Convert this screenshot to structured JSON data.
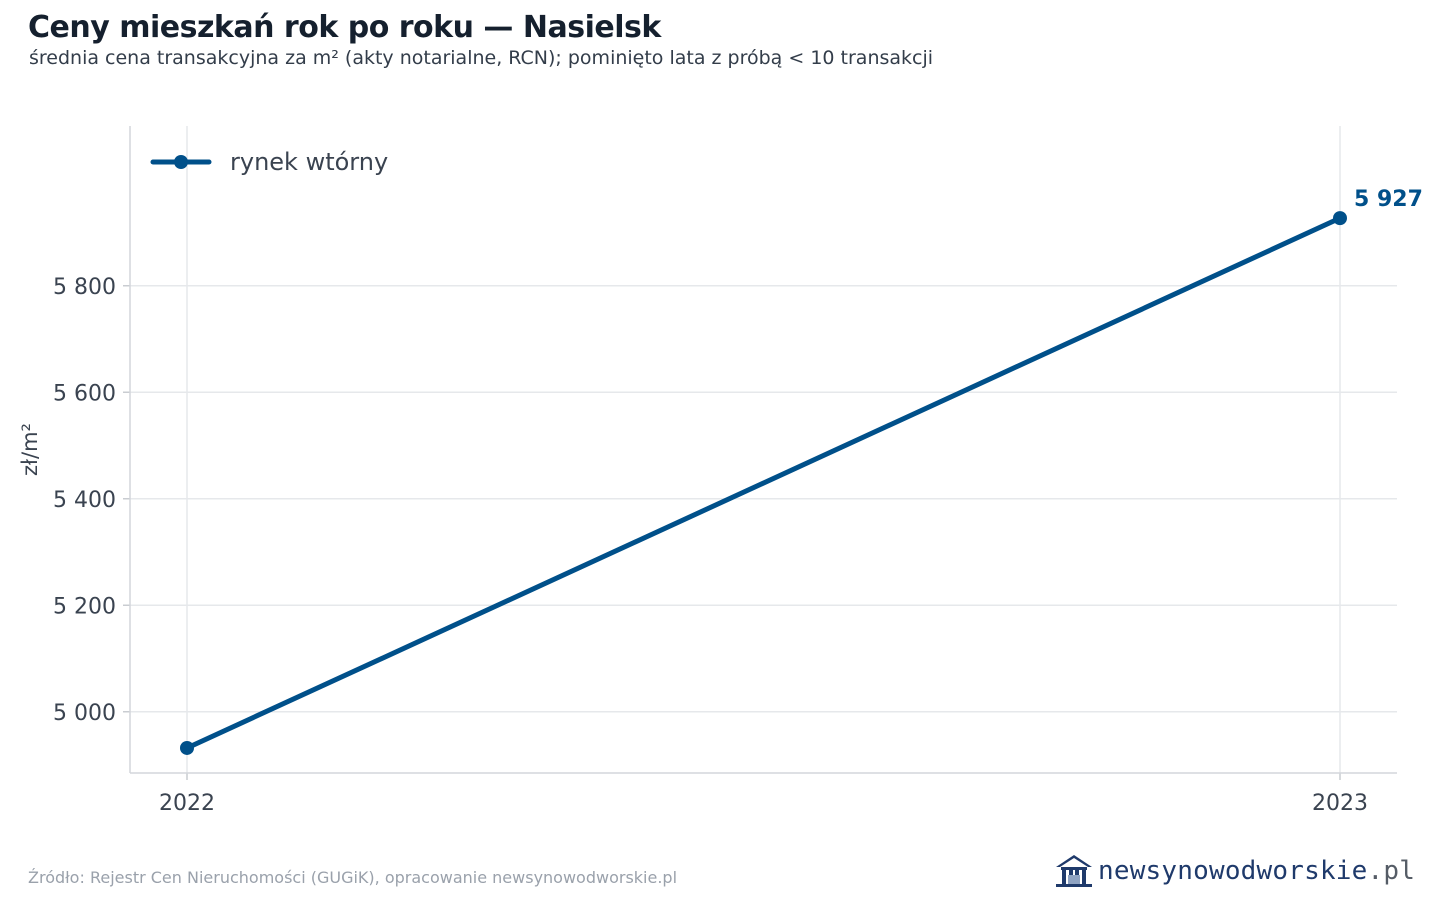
{
  "header": {
    "title": "Ceny mieszkań rok po roku — Nasielsk",
    "subtitle": "średnia cena transakcyjna za m² (akty notarialne, RCN); pominięto lata z próbą < 10 transakcji"
  },
  "chart_data": {
    "type": "line",
    "x": [
      "2022",
      "2023"
    ],
    "series": [
      {
        "name": "rynek wtórny",
        "values": [
          4932,
          5927
        ],
        "color": "#00508a",
        "end_label": "5 927"
      }
    ],
    "ylabel": "zł/m²",
    "xlabel": "",
    "ylim": [
      4885,
      6100
    ],
    "yticks": [
      5000,
      5200,
      5400,
      5600,
      5800
    ],
    "ytick_labels": [
      "5 000",
      "5 200",
      "5 400",
      "5 600",
      "5 800"
    ],
    "grid": true,
    "legend": "top-left"
  },
  "footer": {
    "source": "Źródło: Rejestr Cen Nieruchomości (GUGiK), opracowanie newsynowodworskie.pl",
    "brand_name": "newsynowodworskie",
    "brand_tld": ".pl",
    "brand_icon": "house-icon",
    "brand_color": "#1f3a6b"
  }
}
